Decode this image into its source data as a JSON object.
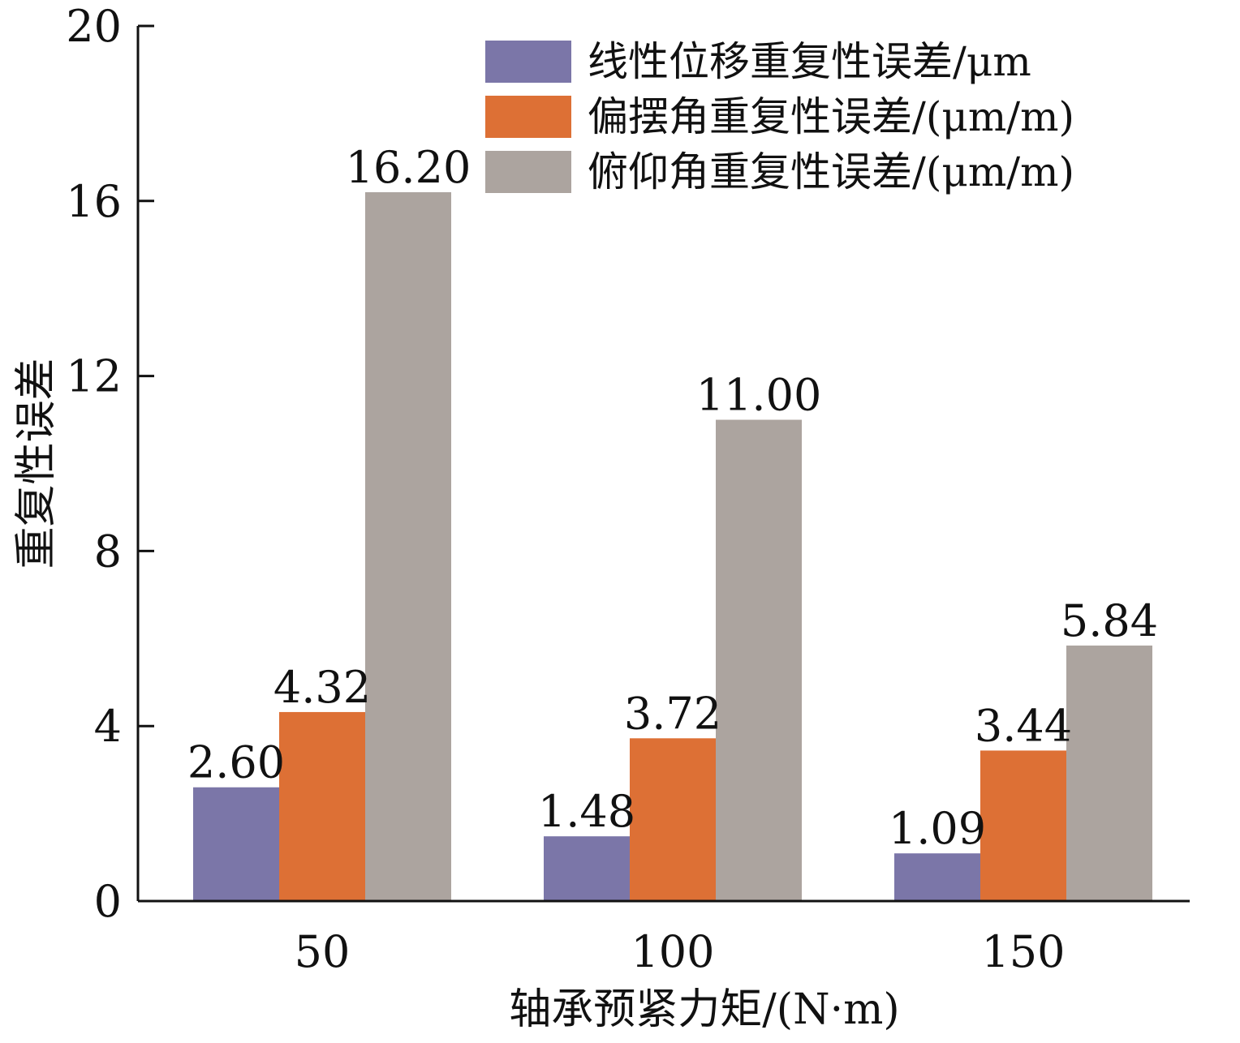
{
  "chart_data": {
    "type": "bar",
    "title": "",
    "xlabel": "轴承预紧力矩/(N·m)",
    "ylabel": "重复性误差",
    "ylim": [
      0,
      20
    ],
    "yticks": [
      0,
      4,
      8,
      12,
      16,
      20
    ],
    "categories": [
      "50",
      "100",
      "150"
    ],
    "legend_position": "top-right",
    "grid": false,
    "series": [
      {
        "name": "线性位移重复性误差/μm",
        "color": "#7b76a8",
        "values": [
          2.6,
          1.48,
          1.09
        ],
        "labels": [
          "2.60",
          "1.48",
          "1.09"
        ]
      },
      {
        "name": "偏摆角重复性误差/(μm/m)",
        "color": "#dd7035",
        "values": [
          4.32,
          3.72,
          3.44
        ],
        "labels": [
          "4.32",
          "3.72",
          "3.44"
        ]
      },
      {
        "name": "俯仰角重复性误差/(μm/m)",
        "color": "#aca49f",
        "values": [
          16.2,
          11.0,
          5.84
        ],
        "labels": [
          "16.20",
          "11.00",
          "5.84"
        ]
      }
    ]
  }
}
